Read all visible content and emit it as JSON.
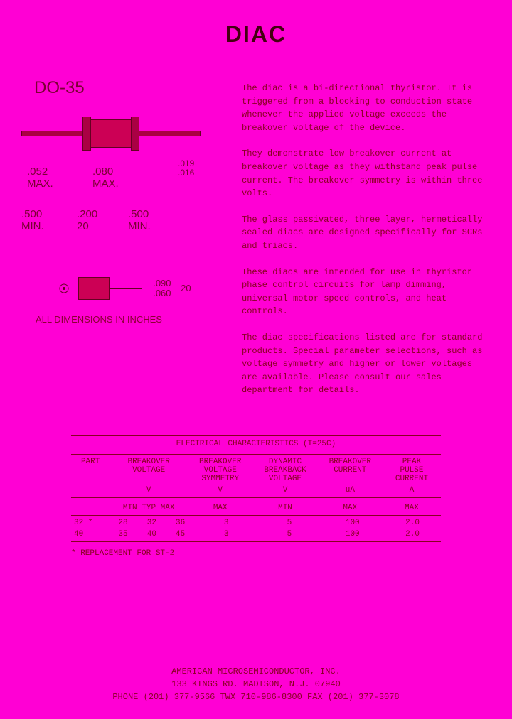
{
  "title": "DIAC",
  "package": {
    "label": "DO-35",
    "dims": {
      "body_dia_max": ".052\nMAX.",
      "body_len_max": ".080\nMAX.",
      "lead_left": ".500\nMIN.",
      "lead_mid": ".200\n20",
      "lead_right": ".500\nMIN.",
      "height": ".019\n.016",
      "side_dia": ".090\n.060",
      "side_len": "20"
    },
    "note": "ALL DIMENSIONS IN INCHES"
  },
  "description": {
    "p1": "The diac is a bi-directional thyristor. It is triggered from a blocking to conduction state whenever the applied voltage exceeds the breakover voltage of the device.",
    "p2": "They demonstrate low breakover current at breakover voltage as they withstand peak pulse current. The breakover symmetry is within three volts.",
    "p3": "The glass passivated, three layer, hermetically sealed diacs are designed specifically for SCRs and triacs.",
    "p4": "These diacs are intended for use in thyristor phase control circuits for lamp dimming, universal motor speed controls, and heat controls.",
    "p5": "The diac specifications listed are for standard products. Special parameter selections, such as voltage symmetry and higher or lower voltages are available. Please consult our sales department for details."
  },
  "table": {
    "title": "ELECTRICAL CHARACTERISTICS (T=25C)",
    "columns": {
      "part": "PART",
      "bv": "BREAKOVER\nVOLTAGE",
      "sym": "BREAKOVER\nVOLTAGE\nSYMMETRY",
      "dyn": "DYNAMIC\nBREAKBACK\nVOLTAGE",
      "cur": "BREAKOVER\nCURRENT",
      "peak": "PEAK\nPULSE\nCURRENT"
    },
    "units": {
      "bv": "V",
      "sym": "V",
      "dyn": "V",
      "cur": "uA",
      "peak": "A"
    },
    "sub": {
      "bv": "MIN TYP MAX",
      "sym": "MAX",
      "dyn": "MIN",
      "cur": "MAX",
      "peak": "MAX"
    },
    "rows": [
      {
        "part": "32 *",
        "min": "28",
        "typ": "32",
        "max": "36",
        "sym": "3",
        "dyn": "5",
        "cur": "100",
        "peak": "2.0"
      },
      {
        "part": "40",
        "min": "35",
        "typ": "40",
        "max": "45",
        "sym": "3",
        "dyn": "5",
        "cur": "100",
        "peak": "2.0"
      }
    ],
    "footnote": "* REPLACEMENT FOR ST-2"
  },
  "footer": {
    "l1": "AMERICAN MICROSEMICONDUCTOR, INC.",
    "l2": "133 KINGS RD.   MADISON, N.J. 07940",
    "l3": "PHONE (201) 377-9566 TWX 710-986-8300 FAX (201) 377-3078"
  },
  "colors": {
    "bg": "#ff00d4",
    "text": "#880022"
  }
}
